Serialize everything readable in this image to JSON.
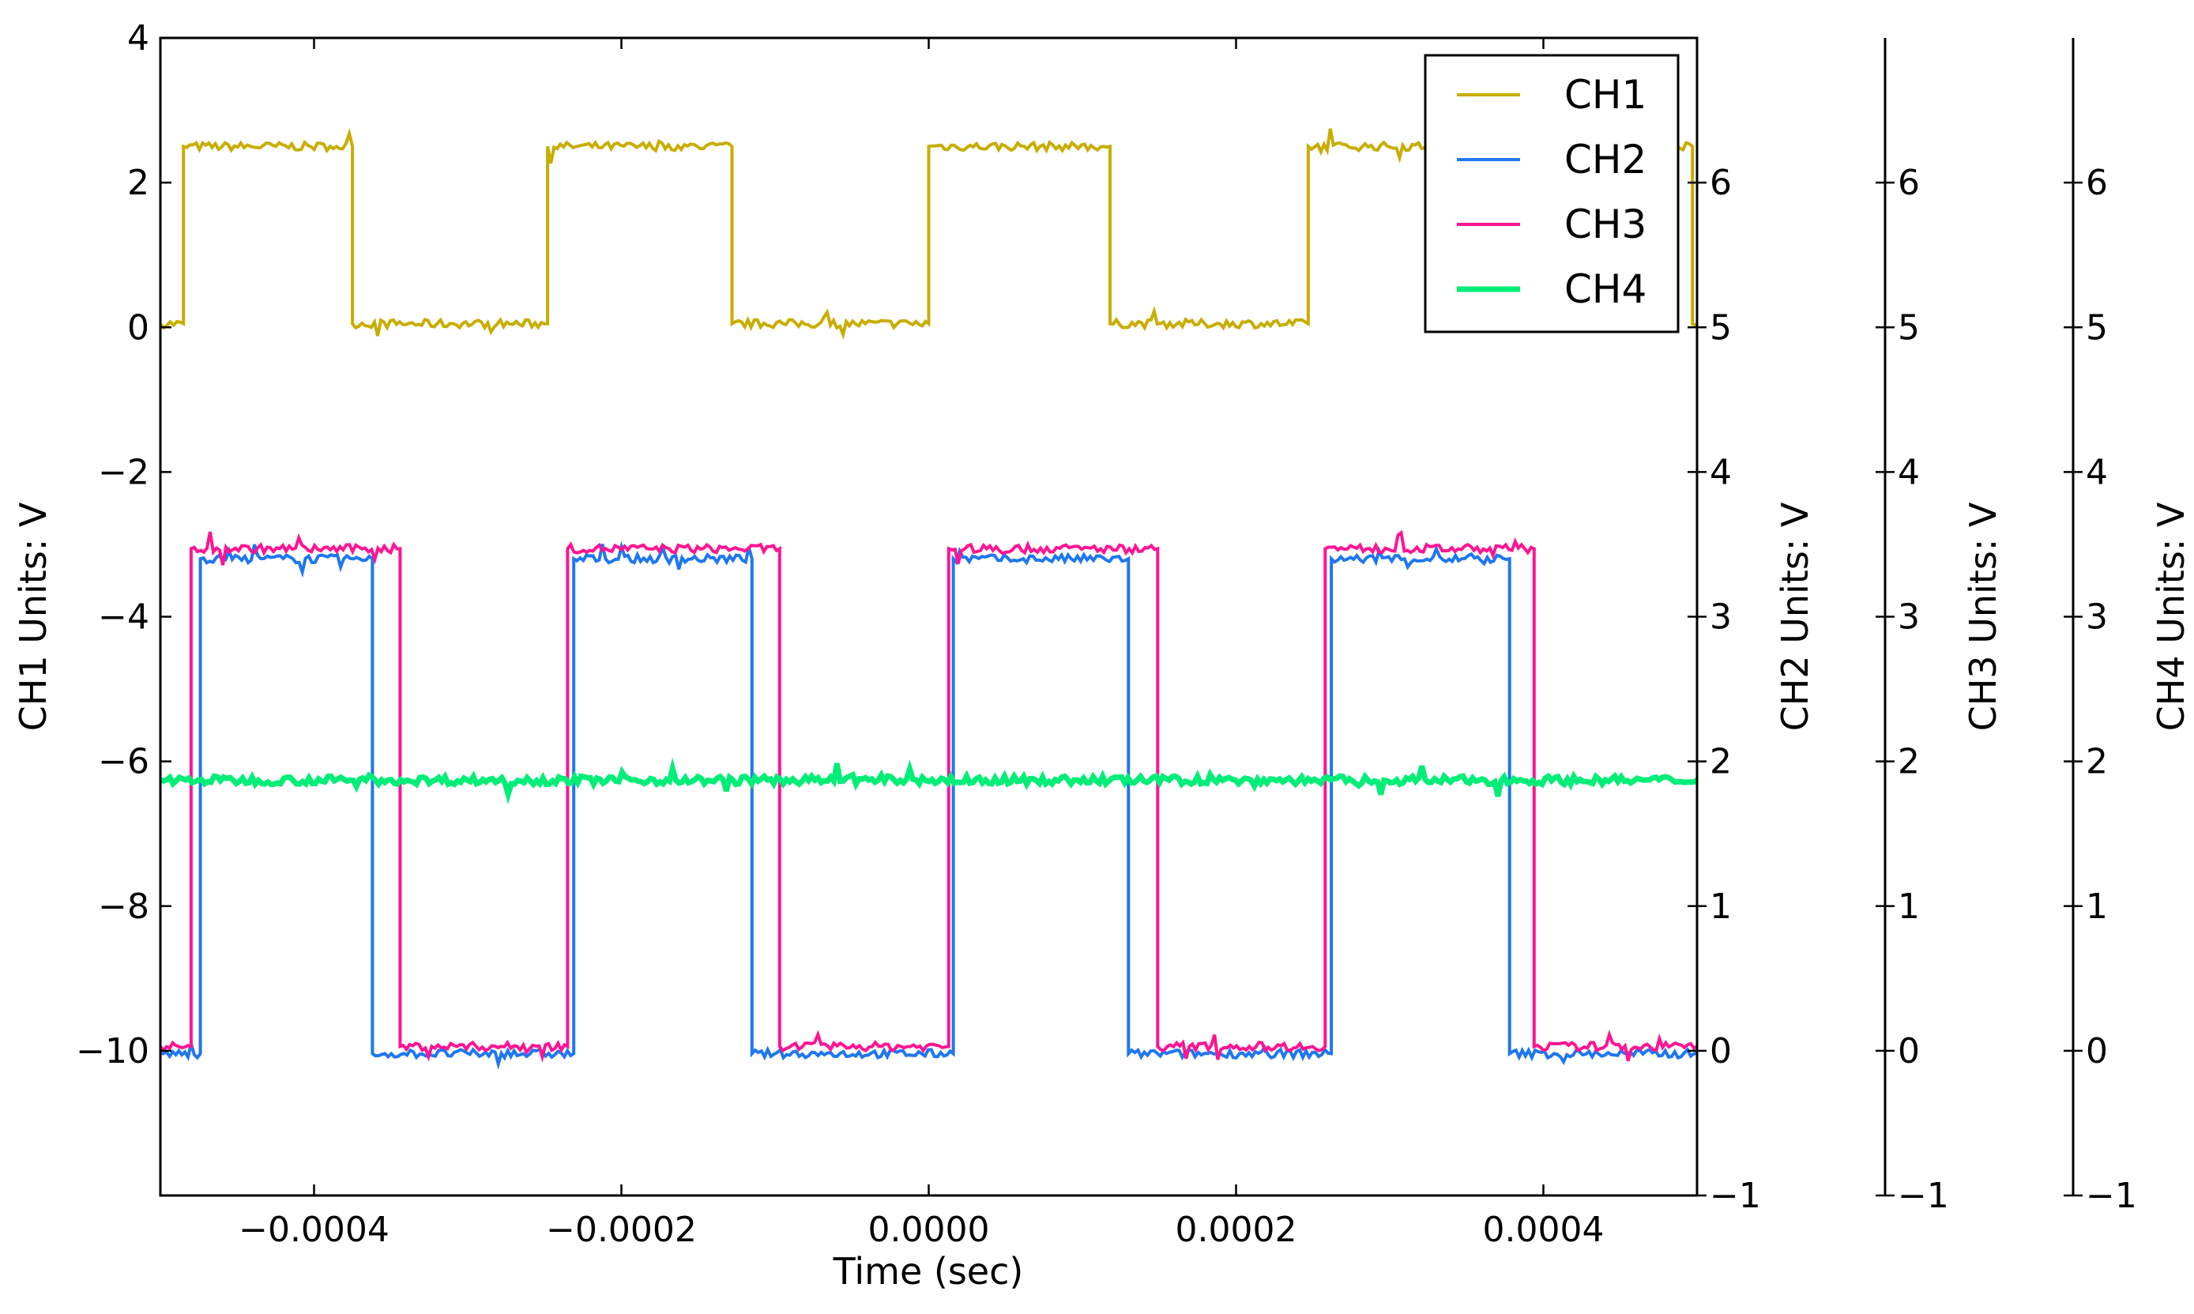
{
  "chart_data": {
    "type": "line",
    "title": "",
    "xlabel": "Time (sec)",
    "xlim": [
      -0.0005,
      0.0005
    ],
    "x_ticks": [
      "−0.0004",
      "−0.0002",
      "0.0000",
      "0.0002",
      "0.0004"
    ],
    "x_tick_values": [
      -0.0004,
      -0.0002,
      0.0,
      0.0002,
      0.0004
    ],
    "grid": false,
    "legend_position": "top-right",
    "axes": [
      {
        "id": "ch1",
        "label": "CH1 Units: V",
        "side": "left",
        "ylim": [
          -12,
          4
        ],
        "ticks": [
          "4",
          "2",
          "0",
          "−2",
          "−4",
          "−6",
          "−8",
          "−10"
        ],
        "tick_values": [
          4,
          2,
          0,
          -2,
          -4,
          -6,
          -8,
          -10
        ]
      },
      {
        "id": "ch2",
        "label": "CH2 Units: V",
        "side": "right",
        "ylim": [
          -1,
          7
        ],
        "ticks": [
          "6",
          "5",
          "4",
          "3",
          "2",
          "1",
          "0",
          "−1"
        ],
        "tick_values": [
          6,
          5,
          4,
          3,
          2,
          1,
          0,
          -1
        ]
      },
      {
        "id": "ch3",
        "label": "CH3 Units: V",
        "side": "right-offset",
        "ylim": [
          -1,
          7
        ],
        "ticks": [
          "6",
          "5",
          "4",
          "3",
          "2",
          "1",
          "0",
          "−1"
        ],
        "tick_values": [
          6,
          5,
          4,
          3,
          2,
          1,
          0,
          -1
        ]
      },
      {
        "id": "ch4",
        "label": "CH4 Units: V",
        "side": "right-offset-2",
        "ylim": [
          -1,
          7
        ],
        "ticks": [
          "6",
          "5",
          "4",
          "3",
          "2",
          "1",
          "0",
          "−1"
        ],
        "tick_values": [
          6,
          5,
          4,
          3,
          2,
          1,
          0,
          -1
        ]
      }
    ],
    "series": [
      {
        "name": "CH1",
        "color": "#c8ad00",
        "axis": "ch1",
        "high": 2.5,
        "low": 0.05,
        "x": [
          -0.0005,
          -0.000485,
          -0.000485,
          -0.000375,
          -0.000375,
          -0.000248,
          -0.000248,
          -0.000128,
          -0.000128,
          0.0,
          0.0,
          0.000118,
          0.000118,
          0.000247,
          0.000247,
          0.000497,
          0.000497,
          0.0005
        ],
        "y": [
          0.05,
          0.05,
          2.5,
          2.5,
          0.05,
          0.05,
          2.5,
          2.5,
          0.05,
          0.05,
          2.5,
          2.5,
          0.05,
          0.05,
          2.5,
          2.5,
          0.05,
          0.05
        ]
      },
      {
        "name": "CH2",
        "color": "#1f77f0",
        "axis": "ch2",
        "high": 3.4,
        "low": -0.02,
        "x": [
          -0.0005,
          -0.000474,
          -0.000474,
          -0.000362,
          -0.000362,
          -0.000231,
          -0.000231,
          -0.000115,
          -0.000115,
          1.6e-05,
          1.6e-05,
          0.00013,
          0.00013,
          0.000262,
          0.000262,
          0.000378,
          0.000378,
          0.0005
        ],
        "y": [
          -0.02,
          -0.02,
          3.4,
          3.4,
          -0.02,
          -0.02,
          3.4,
          3.4,
          -0.02,
          -0.02,
          3.4,
          3.4,
          -0.02,
          -0.02,
          3.4,
          3.4,
          -0.02,
          -0.02
        ]
      },
      {
        "name": "CH3",
        "color": "#ff1493",
        "axis": "ch3",
        "high": 3.47,
        "low": 0.03,
        "x": [
          -0.0005,
          -0.00048,
          -0.00048,
          -0.000344,
          -0.000344,
          -0.000235,
          -0.000235,
          -9.7e-05,
          -9.7e-05,
          1.3e-05,
          1.3e-05,
          0.000149,
          0.000149,
          0.000258,
          0.000258,
          0.000394,
          0.000394,
          0.0005
        ],
        "y": [
          0.03,
          0.03,
          3.47,
          3.47,
          0.03,
          0.03,
          3.47,
          3.47,
          0.03,
          0.03,
          3.47,
          3.47,
          0.03,
          0.03,
          3.47,
          3.47,
          0.03,
          0.03
        ]
      },
      {
        "name": "CH4",
        "color": "#00ee77",
        "axis": "ch4",
        "high": 1.87,
        "low": 1.87,
        "x": [
          -0.0005,
          0.0005
        ],
        "y": [
          1.87,
          1.87
        ]
      }
    ]
  }
}
